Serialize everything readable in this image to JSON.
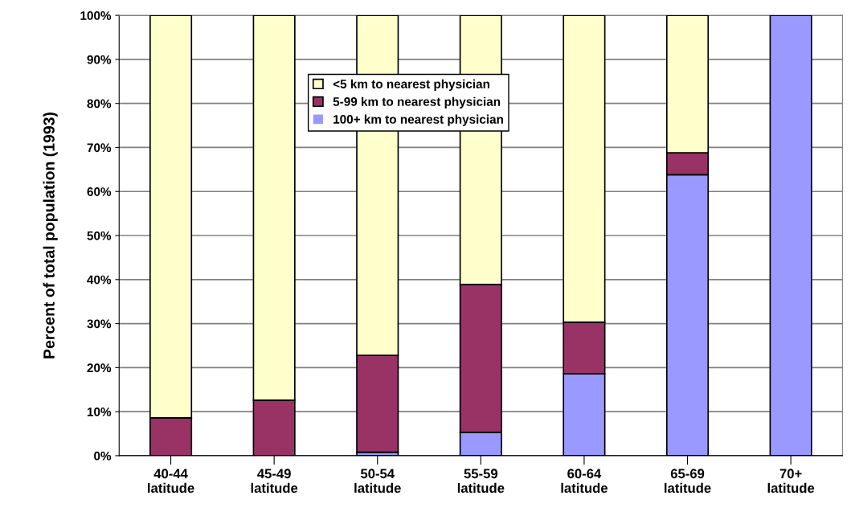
{
  "chart_data": {
    "type": "bar",
    "stacked": true,
    "ylabel": "Percent of total population (1993)",
    "categories": [
      "40-44\nlatitude",
      "45-49\nlatitude",
      "50-54\nlatitude",
      "55-59\nlatitude",
      "60-64\nlatitude",
      "65-69\nlatitude",
      "70+\nlatitude"
    ],
    "series": [
      {
        "name": "100+ km to nearest physician",
        "color": "#9999ff",
        "values": [
          0,
          0,
          0.8,
          5.3,
          18.6,
          63.8,
          100
        ]
      },
      {
        "name": "5-99 km to nearest physician",
        "color": "#993366",
        "values": [
          8.6,
          12.6,
          22.0,
          33.6,
          11.7,
          5.0,
          0
        ]
      },
      {
        "name": "<5 km to nearest physician",
        "color": "#ffffcc",
        "values": [
          91.4,
          87.4,
          77.2,
          61.1,
          69.7,
          31.2,
          0
        ]
      }
    ],
    "ylim": [
      0,
      100
    ],
    "yticks": [
      {
        "value": 0,
        "label": "0%"
      },
      {
        "value": 10,
        "label": "10%"
      },
      {
        "value": 20,
        "label": "20%"
      },
      {
        "value": 30,
        "label": "30%"
      },
      {
        "value": 40,
        "label": "40%"
      },
      {
        "value": 50,
        "label": "50%"
      },
      {
        "value": 60,
        "label": "60%"
      },
      {
        "value": 70,
        "label": "70%"
      },
      {
        "value": 80,
        "label": "80%"
      },
      {
        "value": 90,
        "label": "90%"
      },
      {
        "value": 100,
        "label": "100%"
      }
    ],
    "grid": "y",
    "legend": "top"
  }
}
